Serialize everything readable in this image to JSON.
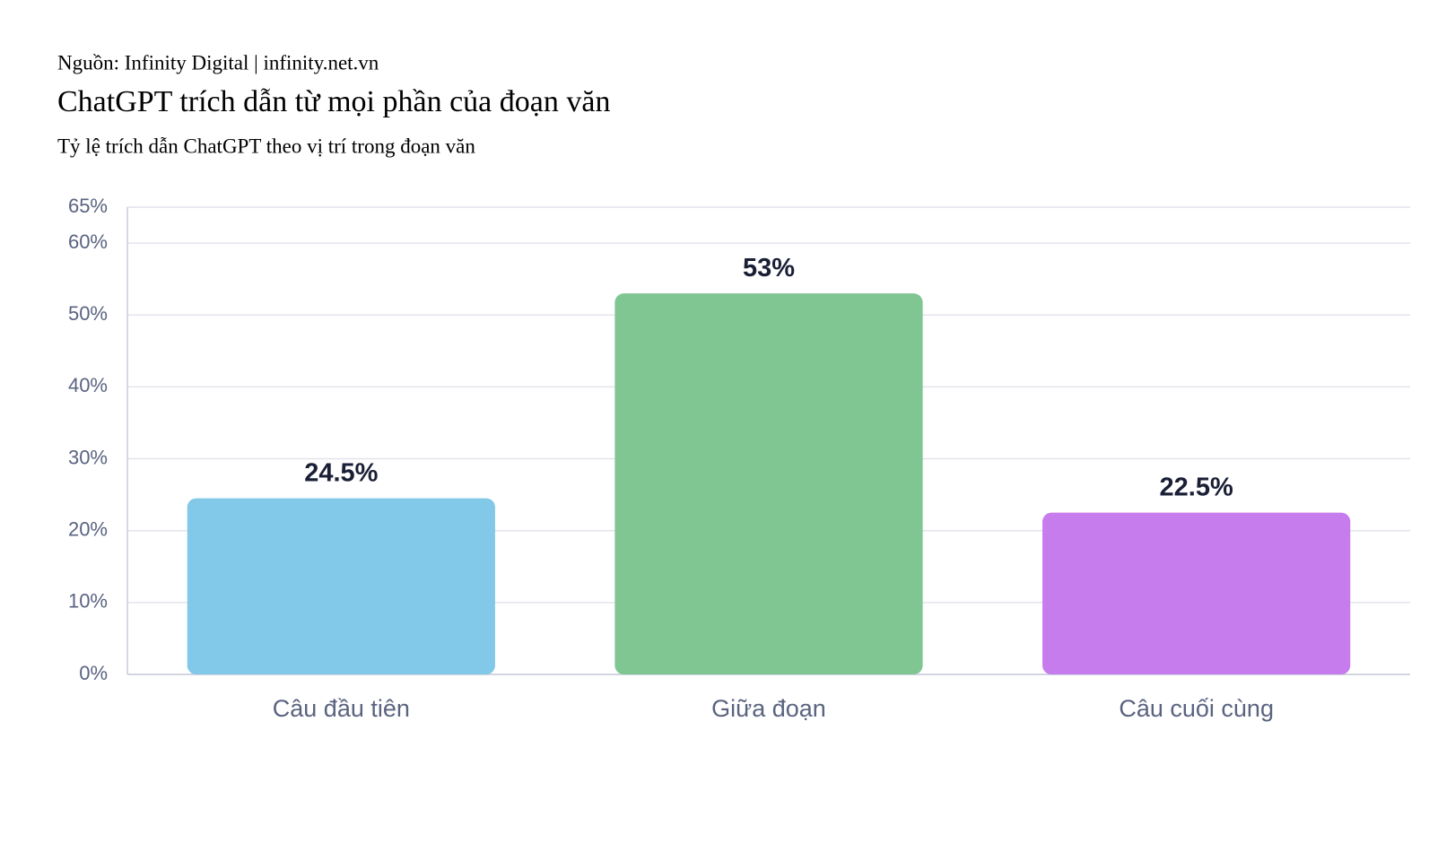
{
  "chart_data": {
    "type": "bar",
    "source": "Nguồn: Infinity Digital | infinity.net.vn",
    "title": "ChatGPT trích dẫn từ mọi phần của đoạn văn",
    "subtitle": "Tỷ lệ trích dẫn ChatGPT theo vị trí trong đoạn văn",
    "categories": [
      "Câu đầu tiên",
      "Giữa đoạn",
      "Câu cuối cùng"
    ],
    "values": [
      24.5,
      53,
      22.5
    ],
    "value_labels": [
      "24.5%",
      "53%",
      "22.5%"
    ],
    "colors": [
      "#82c8e8",
      "#80c693",
      "#c77cee"
    ],
    "ylim": [
      0,
      65
    ],
    "yticks": [
      {
        "value": 0,
        "label": "0%"
      },
      {
        "value": 10,
        "label": "10%"
      },
      {
        "value": 20,
        "label": "20%"
      },
      {
        "value": 30,
        "label": "30%"
      },
      {
        "value": 40,
        "label": "40%"
      },
      {
        "value": 50,
        "label": "50%"
      },
      {
        "value": 60,
        "label": "60%"
      },
      {
        "value": 65,
        "label": "65%"
      }
    ],
    "grid": true
  }
}
